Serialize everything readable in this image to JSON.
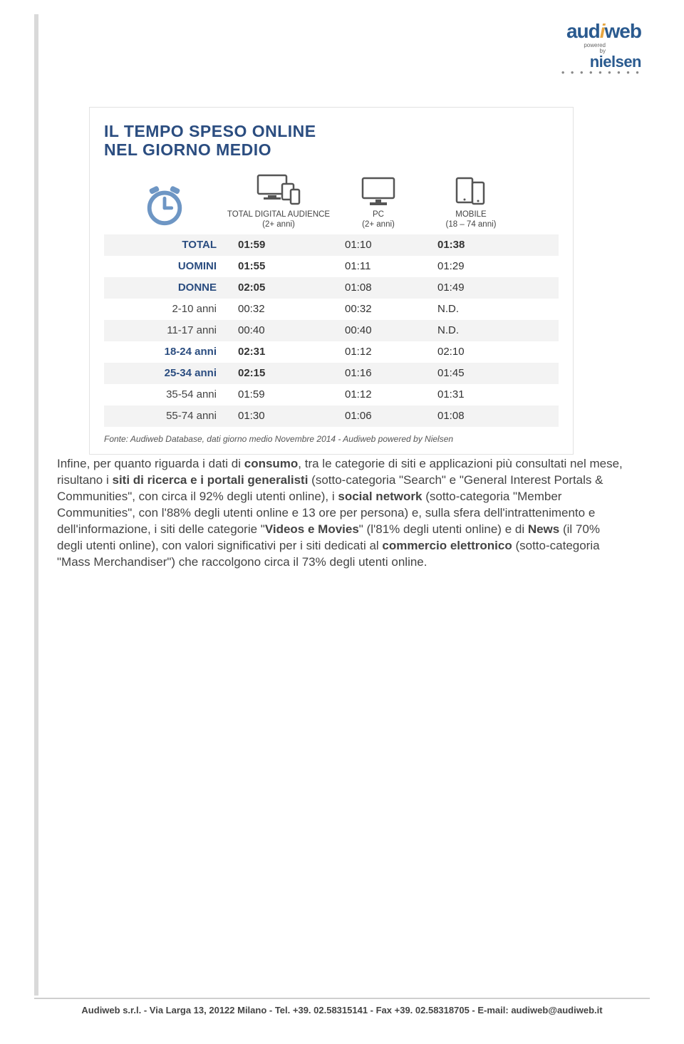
{
  "logo": {
    "brand_main": "aud",
    "brand_i": "i",
    "brand_end": "web",
    "powered": "powered",
    "by": "by",
    "nielsen": "nielsen"
  },
  "figure": {
    "title_line1": "IL TEMPO SPESO ONLINE",
    "title_line2": "NEL GIORNO MEDIO",
    "headers": {
      "total": {
        "label": "TOTAL DIGITAL AUDIENCE",
        "sub": "(2+ anni)"
      },
      "pc": {
        "label": "PC",
        "sub": "(2+ anni)"
      },
      "mobile": {
        "label": "MOBILE",
        "sub": "(18 – 74 anni)"
      }
    },
    "rows": [
      {
        "label": "TOTAL",
        "bold_label": true,
        "bold_vals": [
          true,
          false,
          true
        ],
        "vals": [
          "01:59",
          "01:10",
          "01:38"
        ]
      },
      {
        "label": "UOMINI",
        "bold_label": true,
        "bold_vals": [
          true,
          false,
          false
        ],
        "vals": [
          "01:55",
          "01:11",
          "01:29"
        ]
      },
      {
        "label": "DONNE",
        "bold_label": true,
        "bold_vals": [
          true,
          false,
          false
        ],
        "vals": [
          "02:05",
          "01:08",
          "01:49"
        ]
      },
      {
        "label": "2-10 anni",
        "bold_label": false,
        "bold_vals": [
          false,
          false,
          false
        ],
        "vals": [
          "00:32",
          "00:32",
          "N.D."
        ]
      },
      {
        "label": "11-17 anni",
        "bold_label": false,
        "bold_vals": [
          false,
          false,
          false
        ],
        "vals": [
          "00:40",
          "00:40",
          "N.D."
        ]
      },
      {
        "label": "18-24 anni",
        "bold_label": true,
        "bold_vals": [
          true,
          false,
          false
        ],
        "vals": [
          "02:31",
          "01:12",
          "02:10"
        ]
      },
      {
        "label": "25-34 anni",
        "bold_label": true,
        "bold_vals": [
          true,
          false,
          false
        ],
        "vals": [
          "02:15",
          "01:16",
          "01:45"
        ]
      },
      {
        "label": "35-54 anni",
        "bold_label": false,
        "bold_vals": [
          false,
          false,
          false
        ],
        "vals": [
          "01:59",
          "01:12",
          "01:31"
        ]
      },
      {
        "label": "55-74 anni",
        "bold_label": false,
        "bold_vals": [
          false,
          false,
          false
        ],
        "vals": [
          "01:30",
          "01:06",
          "01:08"
        ]
      }
    ],
    "source": "Fonte: Audiweb Database, dati giorno medio Novembre 2014 - Audiweb powered by Nielsen",
    "colors": {
      "title": "#2b4d80",
      "row_alt_bg": "#f3f3f3",
      "border": "#e2e2e2",
      "icon": "#6e96c4"
    }
  },
  "body": {
    "t1": "Infine, per quanto riguarda i dati di ",
    "t2": "consumo",
    "t3": ", tra le categorie di siti e applicazioni più consultati nel mese, risultano i ",
    "t4": "siti di ricerca e i portali generalisti",
    "t5": " (sotto-categoria \"Search\" e \"General Interest Portals & Communities\", con circa il 92% degli utenti online), i ",
    "t6": "social network",
    "t7": " (sotto-categoria \"Member Communities\", con l'88% degli utenti online e 13 ore per persona) e, sulla sfera dell'intrattenimento e dell'informazione, i siti delle categorie \"",
    "t8": "Videos e Movies",
    "t9": "\" (l'81% degli utenti online) e di ",
    "t10": "News",
    "t11": " (il 70% degli utenti online), con valori significativi per i siti dedicati al ",
    "t12": "commercio elettronico",
    "t13": " (sotto-categoria \"Mass Merchandiser\") che raccolgono circa il 73% degli utenti online."
  },
  "footer": "Audiweb s.r.l. - Via Larga 13, 20122 Milano - Tel. +39. 02.58315141 - Fax +39. 02.58318705 - E-mail: audiweb@audiweb.it"
}
